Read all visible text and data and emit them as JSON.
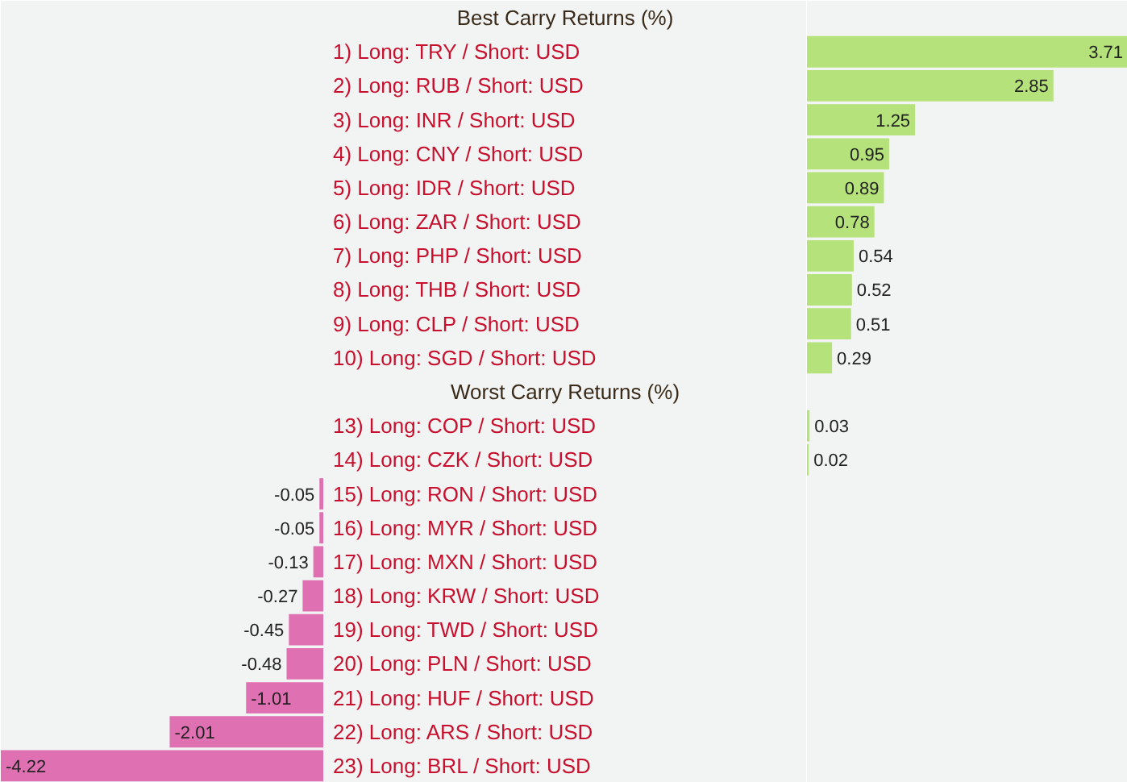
{
  "chart_data": [
    {
      "type": "bar",
      "orientation": "horizontal",
      "title": "Best Carry Returns (%)",
      "subtitle": "Worst Carry Returns (%)",
      "categories": [
        "1) Long: TRY / Short: USD",
        "2) Long: RUB / Short: USD",
        "3) Long: INR / Short: USD",
        "4) Long: CNY / Short: USD",
        "5) Long: IDR / Short: USD",
        "6) Long: ZAR / Short: USD",
        "7) Long: PHP / Short: USD",
        "8) Long: THB / Short: USD",
        "9) Long: CLP / Short: USD",
        "10) Long: SGD / Short: USD",
        null,
        "13) Long: COP / Short: USD",
        "14) Long: CZK / Short: USD",
        "15) Long: RON / Short: USD",
        "16) Long: MYR / Short: USD",
        "17) Long: MXN / Short: USD",
        "18) Long: KRW / Short: USD",
        "19) Long: TWD / Short: USD",
        "20) Long: PLN / Short: USD",
        "21) Long: HUF / Short: USD",
        "22) Long: ARS / Short: USD",
        "23) Long: BRL / Short: USD"
      ],
      "values": [
        null,
        null,
        null,
        null,
        null,
        null,
        null,
        null,
        null,
        null,
        null,
        null,
        null,
        -0.05,
        -0.05,
        -0.13,
        -0.27,
        -0.45,
        -0.48,
        -1.01,
        -2.01,
        -4.22
      ],
      "colors": [
        null,
        null,
        null,
        null,
        null,
        null,
        null,
        null,
        null,
        null,
        null,
        null,
        null,
        "#df70b2",
        "#df70b2",
        "#df70b2",
        "#df70b2",
        "#df70b2",
        "#df70b2",
        "#df70b2",
        "#df70b2",
        "#df70b2"
      ],
      "data_labels": true,
      "grid": false
    },
    {
      "type": "bar",
      "orientation": "horizontal",
      "categories": [
        null,
        null,
        null,
        null,
        null,
        null,
        null,
        null,
        null,
        null,
        null,
        null,
        null,
        null,
        null,
        null,
        null,
        null,
        null,
        null,
        null,
        null
      ],
      "values": [
        3.71,
        2.85,
        1.25,
        0.95,
        0.89,
        0.78,
        0.54,
        0.52,
        0.51,
        0.29,
        null,
        0.03,
        0.02,
        null,
        null,
        null,
        null,
        null,
        null,
        null,
        null,
        null
      ],
      "colors": [
        "#b5e27a",
        "#b5e27a",
        "#b5e27a",
        "#b5e27a",
        "#b5e27a",
        "#b5e27a",
        "#b5e27a",
        "#b5e27a",
        "#b5e27a",
        "#b5e27a",
        null,
        "#b5e27a",
        "#b5e27a",
        null,
        null,
        null,
        null,
        null,
        null,
        null,
        null,
        null
      ],
      "data_labels": true,
      "grid": false
    }
  ]
}
